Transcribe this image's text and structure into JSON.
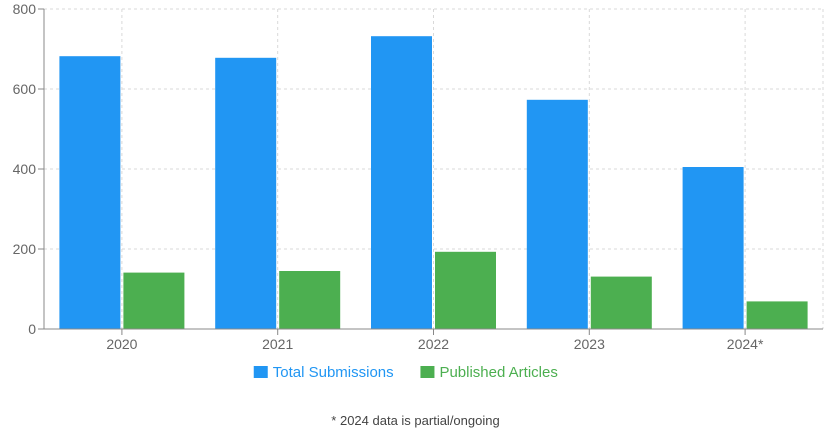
{
  "chart_data": {
    "type": "bar",
    "categories": [
      "2020",
      "2021",
      "2022",
      "2023",
      "2024*"
    ],
    "series": [
      {
        "name": "Total Submissions",
        "color": "#2196F3",
        "values": [
          682,
          678,
          732,
          573,
          405
        ]
      },
      {
        "name": "Published Articles",
        "color": "#4CAF50",
        "values": [
          141,
          145,
          193,
          131,
          69
        ]
      }
    ],
    "yticks": [
      0,
      200,
      400,
      600,
      800
    ],
    "ylim": [
      0,
      800
    ],
    "grid": true,
    "legend": "bottom"
  },
  "footnote": "* 2024 data is partial/ongoing"
}
